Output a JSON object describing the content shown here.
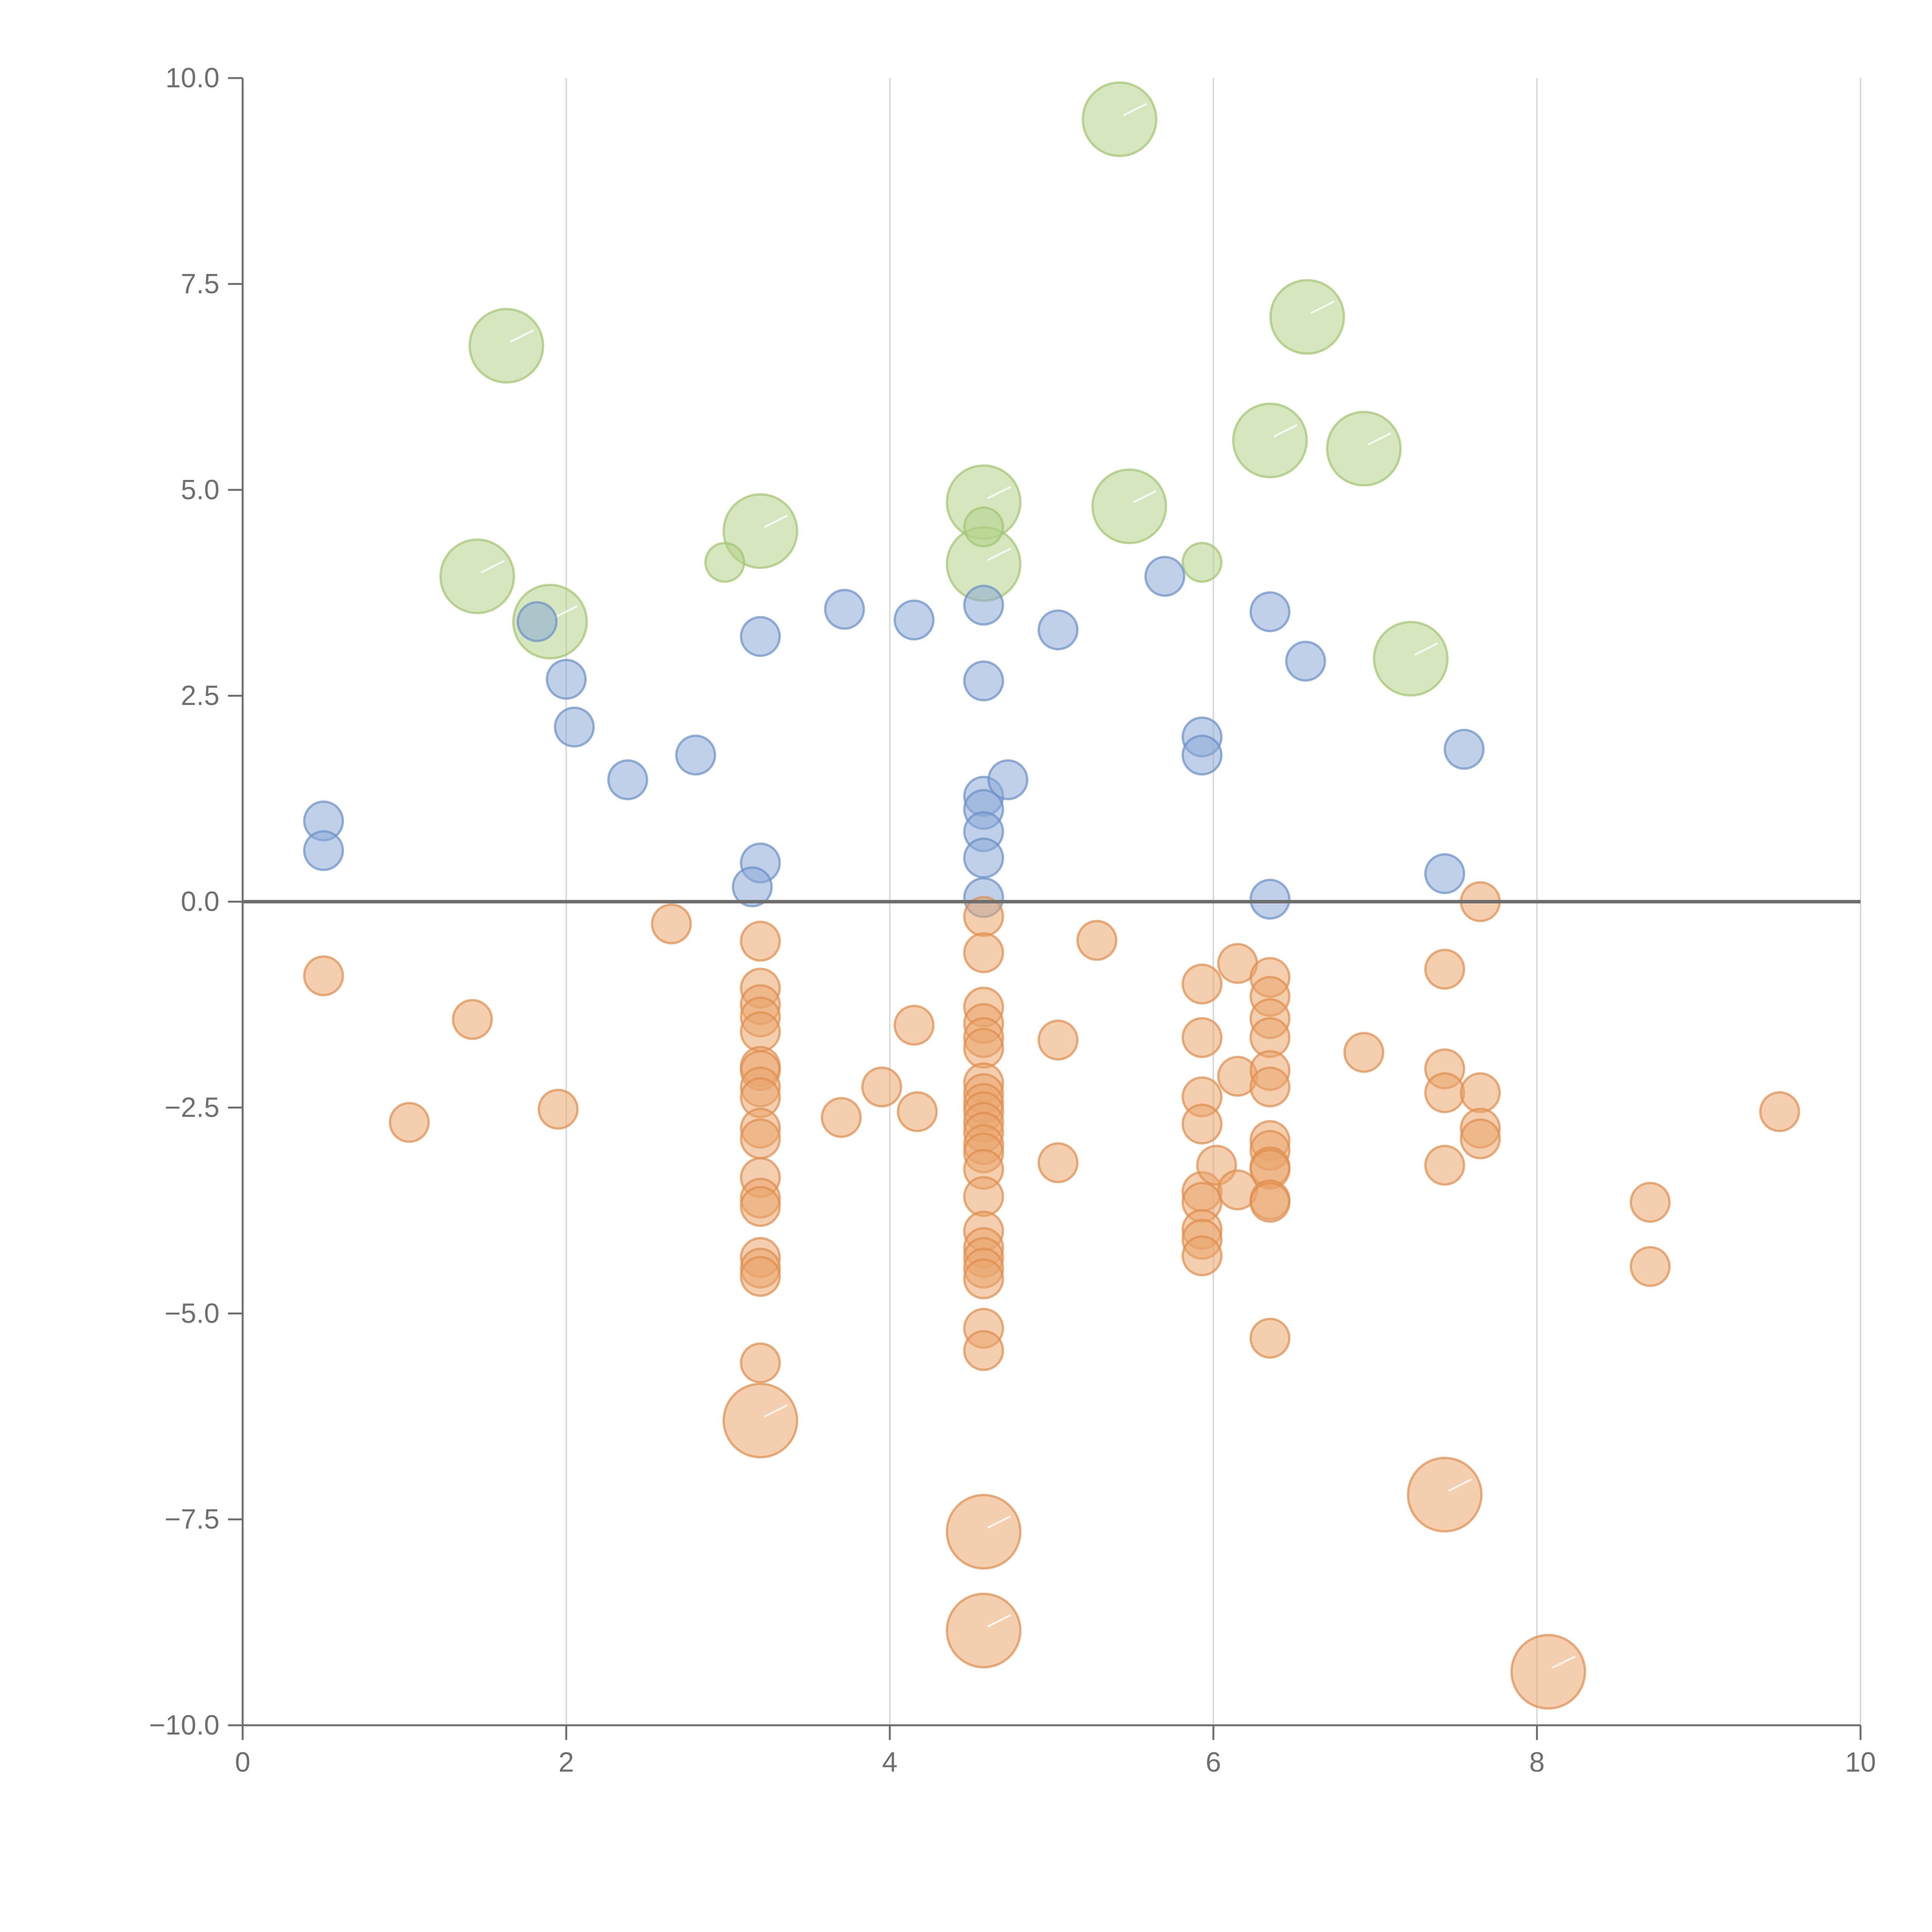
{
  "chart_data": {
    "type": "scatter",
    "title": "",
    "xlabel": "",
    "ylabel": "",
    "xlim": [
      0,
      10
    ],
    "ylim": [
      -10,
      10
    ],
    "grid": "vertical",
    "zero_line": 0,
    "x_ticks": [
      0,
      2,
      4,
      6,
      8,
      10
    ],
    "x_tick_labels": [
      "0",
      "2",
      "4",
      "6",
      "8",
      "10"
    ],
    "y_ticks": [
      10,
      7.5,
      5,
      2.5,
      0,
      -2.5,
      -5,
      -7.5,
      -10
    ],
    "y_tick_labels": [
      "10.0",
      "7.5",
      "5.0",
      "2.5",
      "0.0",
      "−2.5",
      "−5.0",
      "−7.5",
      "−10.0"
    ],
    "colors": {
      "green_fill": "#b5d18a",
      "green_stroke": "#a3c46f",
      "blue_fill": "#8aaad6",
      "blue_stroke": "#6a90c8",
      "orange_fill": "#eaa56e",
      "orange_stroke": "#e08d4c",
      "axis": "#6e6e6e",
      "grid": "#d9d9d9"
    },
    "series": [
      {
        "name": "green",
        "points": [
          [
            5.42,
            9.5,
            3
          ],
          [
            1.63,
            6.75,
            3
          ],
          [
            6.58,
            7.1,
            3
          ],
          [
            6.35,
            5.6,
            3
          ],
          [
            6.93,
            5.5,
            3
          ],
          [
            4.58,
            4.85,
            3
          ],
          [
            5.48,
            4.8,
            3
          ],
          [
            3.2,
            4.5,
            3
          ],
          [
            4.58,
            4.1,
            3
          ],
          [
            1.45,
            3.95,
            3
          ],
          [
            1.9,
            3.4,
            3
          ],
          [
            7.22,
            2.95,
            3
          ],
          [
            2.98,
            4.12,
            1
          ],
          [
            5.93,
            4.12,
            1
          ],
          [
            4.58,
            4.55,
            1
          ]
        ]
      },
      {
        "name": "blue",
        "points": [
          [
            1.82,
            3.4,
            1
          ],
          [
            2.0,
            2.7,
            1
          ],
          [
            2.05,
            2.12,
            1
          ],
          [
            2.38,
            1.48,
            1
          ],
          [
            2.8,
            1.78,
            1
          ],
          [
            3.2,
            3.22,
            1
          ],
          [
            3.72,
            3.55,
            1
          ],
          [
            4.15,
            3.42,
            1
          ],
          [
            4.58,
            3.6,
            1
          ],
          [
            4.58,
            2.68,
            1
          ],
          [
            5.04,
            3.3,
            1
          ],
          [
            5.7,
            3.95,
            1
          ],
          [
            6.35,
            3.52,
            1
          ],
          [
            6.57,
            2.92,
            1
          ],
          [
            5.93,
            2.0,
            1
          ],
          [
            5.93,
            1.78,
            1
          ],
          [
            7.55,
            1.85,
            1
          ],
          [
            0.5,
            0.98,
            1
          ],
          [
            0.5,
            0.62,
            1
          ],
          [
            3.2,
            0.47,
            1
          ],
          [
            3.15,
            0.18,
            1
          ],
          [
            4.58,
            1.28,
            1
          ],
          [
            4.58,
            1.12,
            1
          ],
          [
            4.73,
            1.48,
            1
          ],
          [
            4.58,
            0.85,
            1
          ],
          [
            4.58,
            0.53,
            1
          ],
          [
            4.58,
            0.05,
            1
          ],
          [
            6.35,
            0.03,
            1
          ],
          [
            7.43,
            0.34,
            1
          ]
        ]
      },
      {
        "name": "orange",
        "points": [
          [
            7.65,
            0.0,
            1
          ],
          [
            2.65,
            -0.27,
            1
          ],
          [
            3.2,
            -0.48,
            1
          ],
          [
            4.58,
            -0.18,
            1
          ],
          [
            4.58,
            -0.62,
            1
          ],
          [
            5.28,
            -0.47,
            1
          ],
          [
            0.5,
            -0.9,
            1
          ],
          [
            1.42,
            -1.43,
            1
          ],
          [
            1.03,
            -2.68,
            1
          ],
          [
            1.95,
            -2.52,
            1
          ],
          [
            3.2,
            -1.05,
            1
          ],
          [
            3.2,
            -1.25,
            1
          ],
          [
            3.2,
            -1.4,
            1
          ],
          [
            3.2,
            -1.58,
            1
          ],
          [
            3.2,
            -2.0,
            1
          ],
          [
            3.2,
            -2.05,
            1
          ],
          [
            3.2,
            -2.25,
            1
          ],
          [
            3.2,
            -2.38,
            1
          ],
          [
            3.2,
            -2.75,
            1
          ],
          [
            3.2,
            -2.88,
            1
          ],
          [
            3.2,
            -3.35,
            1
          ],
          [
            3.2,
            -3.6,
            1
          ],
          [
            3.2,
            -3.7,
            1
          ],
          [
            3.2,
            -4.32,
            1
          ],
          [
            3.2,
            -4.45,
            1
          ],
          [
            3.2,
            -4.55,
            1
          ],
          [
            3.2,
            -5.6,
            1
          ],
          [
            3.7,
            -2.62,
            1
          ],
          [
            3.95,
            -2.25,
            1
          ],
          [
            4.15,
            -1.5,
            1
          ],
          [
            4.17,
            -2.55,
            1
          ],
          [
            4.58,
            -1.28,
            1
          ],
          [
            4.58,
            -1.48,
            1
          ],
          [
            4.58,
            -1.65,
            1
          ],
          [
            4.58,
            -1.78,
            1
          ],
          [
            4.58,
            -2.2,
            1
          ],
          [
            4.58,
            -2.33,
            1
          ],
          [
            4.58,
            -2.45,
            1
          ],
          [
            4.58,
            -2.55,
            1
          ],
          [
            4.58,
            -2.68,
            1
          ],
          [
            4.58,
            -2.8,
            1
          ],
          [
            4.58,
            -2.95,
            1
          ],
          [
            4.58,
            -3.05,
            1
          ],
          [
            4.58,
            -3.25,
            1
          ],
          [
            4.58,
            -3.58,
            1
          ],
          [
            4.58,
            -4.0,
            1
          ],
          [
            4.58,
            -4.2,
            1
          ],
          [
            4.58,
            -4.32,
            1
          ],
          [
            4.58,
            -4.45,
            1
          ],
          [
            4.58,
            -4.58,
            1
          ],
          [
            4.58,
            -5.18,
            1
          ],
          [
            4.58,
            -5.45,
            1
          ],
          [
            5.04,
            -1.68,
            1
          ],
          [
            5.04,
            -3.17,
            1
          ],
          [
            5.93,
            -1.0,
            1
          ],
          [
            5.93,
            -1.65,
            1
          ],
          [
            5.93,
            -2.37,
            1
          ],
          [
            5.93,
            -2.7,
            1
          ],
          [
            5.93,
            -3.52,
            1
          ],
          [
            5.93,
            -3.65,
            1
          ],
          [
            5.93,
            -3.98,
            1
          ],
          [
            5.93,
            -4.1,
            1
          ],
          [
            5.93,
            -4.3,
            1
          ],
          [
            6.02,
            -3.2,
            1
          ],
          [
            6.15,
            -0.75,
            1
          ],
          [
            6.15,
            -2.12,
            1
          ],
          [
            6.15,
            -3.5,
            1
          ],
          [
            6.35,
            -0.92,
            1
          ],
          [
            6.35,
            -1.15,
            1
          ],
          [
            6.35,
            -1.42,
            1
          ],
          [
            6.35,
            -1.65,
            1
          ],
          [
            6.35,
            -2.05,
            1
          ],
          [
            6.35,
            -2.25,
            1
          ],
          [
            6.35,
            -2.9,
            1
          ],
          [
            6.35,
            -3.02,
            1
          ],
          [
            6.35,
            -3.22,
            1
          ],
          [
            6.35,
            -3.25,
            1
          ],
          [
            6.35,
            -3.62,
            1
          ],
          [
            6.35,
            -3.65,
            1
          ],
          [
            6.35,
            -5.3,
            1
          ],
          [
            6.93,
            -1.83,
            1
          ],
          [
            7.43,
            -0.82,
            1
          ],
          [
            7.43,
            -2.03,
            1
          ],
          [
            7.43,
            -2.32,
            1
          ],
          [
            7.43,
            -3.2,
            1
          ],
          [
            7.65,
            -2.32,
            1
          ],
          [
            7.65,
            -2.75,
            1
          ],
          [
            7.65,
            -2.88,
            1
          ],
          [
            8.7,
            -3.65,
            1
          ],
          [
            8.7,
            -4.43,
            1
          ],
          [
            9.5,
            -2.55,
            1
          ],
          [
            3.2,
            -6.3,
            3
          ],
          [
            4.58,
            -7.65,
            3
          ],
          [
            4.58,
            -8.85,
            3
          ],
          [
            7.43,
            -7.2,
            3
          ],
          [
            8.07,
            -9.35,
            3
          ]
        ]
      }
    ]
  }
}
